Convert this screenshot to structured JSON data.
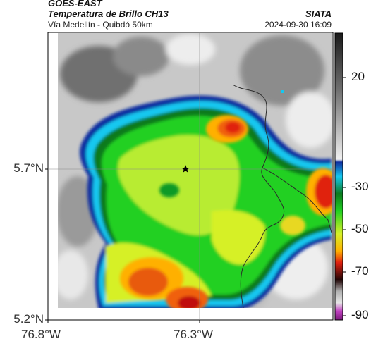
{
  "header": {
    "product": "GOES-EAST",
    "subtitle": "Temperatura de Brillo CH13",
    "caption": "Vía Medellín - Quibdó 50km",
    "organization": "SIATA",
    "timestamp": "2024-09-30 16:09"
  },
  "axes": {
    "lat_ticks": [
      "5.7°N",
      "5.2°N"
    ],
    "lon_ticks": [
      "76.8°W",
      "76.3°W"
    ]
  },
  "colorbar": {
    "ticks": [
      "20",
      "-30",
      "-50",
      "-70",
      "-90"
    ],
    "colors": [
      "#1a1a1a",
      "#6a6a6a",
      "#e6e6e6",
      "#0f2fa0",
      "#14c8f0",
      "#0a7a1e",
      "#20d020",
      "#d6f028",
      "#ffd000",
      "#f05010",
      "#b01010",
      "#200505",
      "#b0b0b0",
      "#c040c0"
    ]
  },
  "map": {
    "marker": "star-icon",
    "grid": true,
    "feature": "department-boundary"
  }
}
